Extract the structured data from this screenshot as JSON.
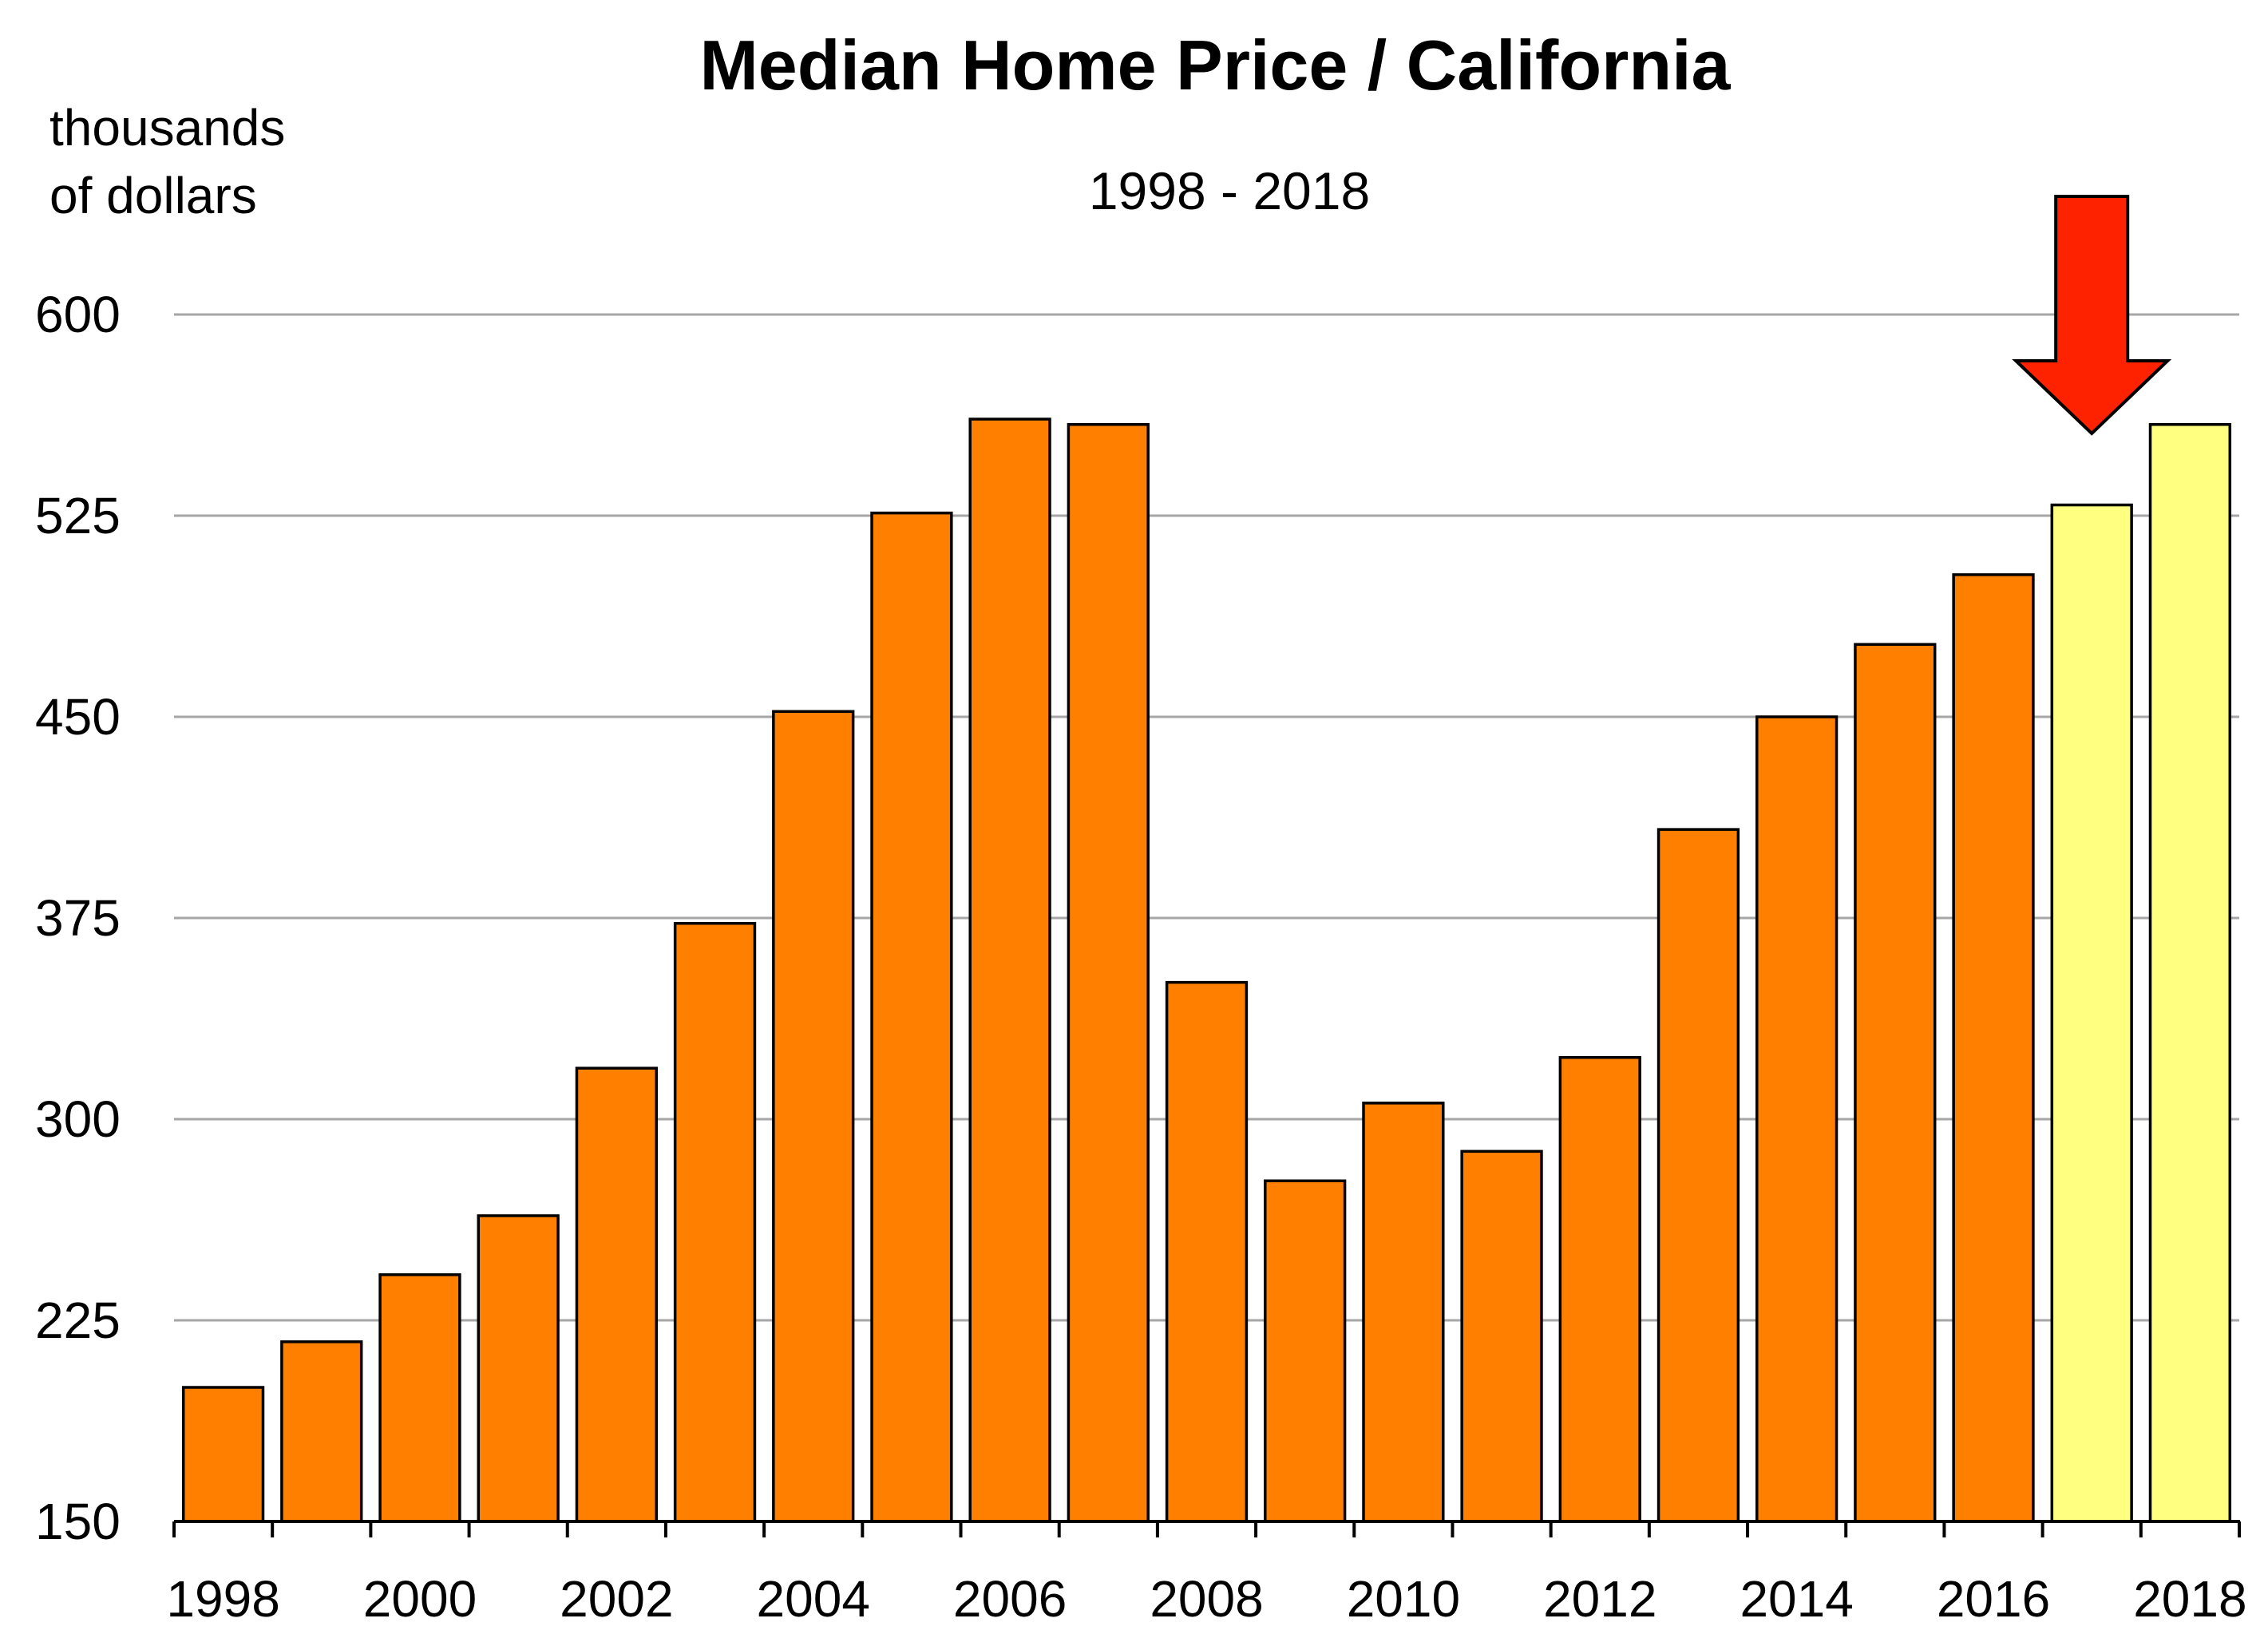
{
  "chart_data": {
    "type": "bar",
    "title": "Median Home Price / California",
    "subtitle": "1998 - 2018",
    "ylabel": "thousands of dollars",
    "ylabel_lines": [
      "thousands",
      "of dollars"
    ],
    "xlabel": "",
    "ylim": [
      150,
      600
    ],
    "yticks": [
      "150",
      "225",
      "300",
      "375",
      "450",
      "525",
      "600"
    ],
    "grid": true,
    "categories": [
      "1998",
      "1999",
      "2000",
      "2001",
      "2002",
      "2003",
      "2004",
      "2005",
      "2006",
      "2007",
      "2008",
      "2009",
      "2010",
      "2011",
      "2012",
      "2013",
      "2014",
      "2015",
      "2016",
      "2017",
      "2018"
    ],
    "x_tick_labels": [
      "1998",
      "2000",
      "2002",
      "2004",
      "2006",
      "2008",
      "2010",
      "2012",
      "2014",
      "2016",
      "2018"
    ],
    "values": [
      200,
      217,
      242,
      264,
      319,
      373,
      452,
      526,
      561,
      559,
      351,
      277,
      306,
      288,
      323,
      408,
      450,
      477,
      503,
      529,
      559
    ],
    "colors": {
      "historical": "#ff7f00",
      "forecast": "#ffff80",
      "arrow": "#ff2200",
      "grid": "#a6a6a6"
    },
    "forecast_categories": [
      "2017",
      "2018"
    ],
    "annotation": {
      "type": "arrow",
      "direction": "down",
      "points_to": "2017"
    }
  }
}
